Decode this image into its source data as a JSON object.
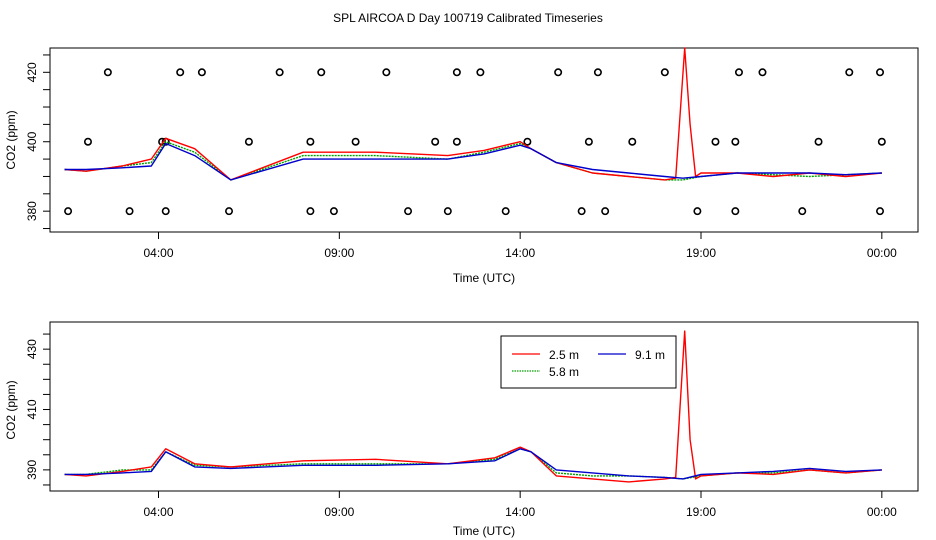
{
  "title": "SPL AIRCOA D  Day 100719  Calibrated Timeseries",
  "colors": {
    "s25": "#ff0000",
    "s58": "#00a000",
    "s91": "#0000cc",
    "axis": "#000000",
    "circle": "#000000"
  },
  "chart_data": [
    {
      "type": "line",
      "name": "top",
      "xlabel": "Time (UTC)",
      "ylabel": "CO2 (ppm)",
      "xlim": [
        1.0,
        25.0
      ],
      "ylim": [
        374,
        427
      ],
      "x_ticks": [
        4,
        9,
        14,
        19,
        24
      ],
      "x_tick_labels": [
        "04:00",
        "09:00",
        "14:00",
        "19:00",
        "00:00"
      ],
      "y_ticks": [
        380,
        400,
        420
      ],
      "y_tick_labels": [
        "380",
        "400",
        "420"
      ],
      "series": [
        {
          "name": "2.5 m",
          "color_key": "s25",
          "x": [
            1.4,
            2,
            3,
            3.8,
            4.2,
            5,
            6,
            8,
            10,
            12,
            13,
            14,
            14.3,
            15,
            16,
            17,
            18,
            18.3,
            18.55,
            18.7,
            18.85,
            19,
            20,
            21,
            22,
            23,
            24
          ],
          "y": [
            392,
            391.5,
            393,
            395,
            401,
            398,
            389,
            397,
            397,
            396,
            397.5,
            400,
            398,
            394,
            391,
            390,
            389,
            389.5,
            427,
            405,
            390,
            391,
            391,
            390,
            391,
            390,
            391
          ]
        },
        {
          "name": "5.8 m",
          "color_key": "s58",
          "x": [
            1.4,
            2,
            3,
            3.8,
            4.2,
            5,
            6,
            8,
            10,
            12,
            13,
            14,
            14.3,
            15,
            16,
            17,
            18,
            18.5,
            19,
            20,
            21,
            22,
            23,
            24
          ],
          "y": [
            392,
            391.5,
            393,
            394,
            400,
            397,
            389,
            396,
            396,
            395,
            397,
            399.5,
            398,
            394,
            391,
            390,
            389,
            389,
            390,
            391,
            390.5,
            390,
            390.5,
            391
          ]
        },
        {
          "name": "9.1 m",
          "color_key": "s91",
          "x": [
            1.4,
            2,
            3,
            3.8,
            4.2,
            5,
            6,
            8,
            10,
            12,
            13,
            14,
            14.3,
            15,
            16,
            17,
            18,
            18.5,
            19,
            20,
            21,
            22,
            23,
            24
          ],
          "y": [
            392,
            392,
            392.5,
            393,
            399.5,
            396,
            389,
            395,
            395,
            395,
            396.5,
            399,
            398,
            394,
            392,
            391,
            390,
            389.5,
            390,
            391,
            391,
            391,
            390.5,
            391
          ]
        }
      ],
      "calibration_markers": [
        {
          "x": [
            1.5,
            3.2,
            4.2,
            5.95,
            8.2,
            8.85,
            10.9,
            12.0,
            13.6,
            15.7,
            16.35,
            18.9,
            19.95,
            21.8,
            23.95
          ],
          "y": 380
        },
        {
          "x": [
            2.05,
            4.1,
            4.2,
            6.5,
            8.2,
            9.45,
            11.65,
            12.25,
            14.2,
            15.9,
            17.1,
            19.4,
            19.95,
            22.25,
            24.0
          ],
          "y": 400
        },
        {
          "x": [
            2.6,
            4.6,
            5.2,
            7.35,
            8.5,
            10.3,
            12.25,
            12.9,
            15.05,
            16.15,
            18.0,
            20.05,
            20.7,
            23.1,
            23.95
          ],
          "y": 420
        }
      ]
    },
    {
      "type": "line",
      "name": "bottom",
      "xlabel": "Time (UTC)",
      "ylabel": "CO2 (ppm)",
      "xlim": [
        1.0,
        25.0
      ],
      "ylim": [
        383,
        439
      ],
      "x_ticks": [
        4,
        9,
        14,
        19,
        24
      ],
      "x_tick_labels": [
        "04:00",
        "09:00",
        "14:00",
        "19:00",
        "00:00"
      ],
      "y_ticks": [
        390,
        410,
        430
      ],
      "y_tick_labels": [
        "390",
        "410",
        "430"
      ],
      "series": [
        {
          "name": "2.5 m",
          "color_key": "s25",
          "x": [
            1.4,
            2,
            3,
            3.8,
            4.2,
            5,
            6,
            8,
            10,
            12,
            13.3,
            14,
            14.3,
            15,
            16,
            17,
            18,
            18.3,
            18.55,
            18.7,
            18.85,
            19,
            20,
            21,
            22,
            23,
            24
          ],
          "y": [
            388.5,
            388,
            389.5,
            391,
            397,
            392,
            391,
            393,
            393.5,
            392,
            394,
            397.5,
            396,
            388,
            387,
            386,
            387,
            387.5,
            436,
            400,
            387,
            388,
            389,
            388.5,
            390,
            389,
            390
          ]
        },
        {
          "name": "5.8 m",
          "color_key": "s58",
          "x": [
            1.4,
            2,
            3,
            3.8,
            4.2,
            5,
            6,
            8,
            10,
            12,
            13.3,
            14,
            14.3,
            15,
            16,
            17,
            18,
            18.5,
            19,
            20,
            21,
            22,
            23,
            24
          ],
          "y": [
            388.5,
            388.5,
            390,
            390,
            396,
            391.5,
            391,
            392,
            392,
            392,
            393.5,
            397,
            396,
            389,
            388,
            388,
            387.5,
            387,
            388,
            389,
            389,
            390,
            389,
            390
          ]
        },
        {
          "name": "9.1 m",
          "color_key": "s91",
          "x": [
            1.4,
            2,
            3,
            3.8,
            4.2,
            5,
            6,
            8,
            10,
            12,
            13.3,
            14,
            14.3,
            15,
            16,
            17,
            18,
            18.5,
            19,
            20,
            21,
            22,
            23,
            24
          ],
          "y": [
            388.5,
            388.5,
            389,
            389.5,
            396,
            391,
            390.5,
            391.5,
            391.5,
            392,
            393,
            397,
            396,
            390,
            389,
            388,
            387.5,
            387,
            388.5,
            389,
            389.5,
            390.5,
            389.5,
            390
          ]
        }
      ],
      "legend": {
        "placement": "top-center",
        "entries": [
          "2.5 m",
          "9.1 m",
          "5.8 m"
        ]
      }
    }
  ]
}
